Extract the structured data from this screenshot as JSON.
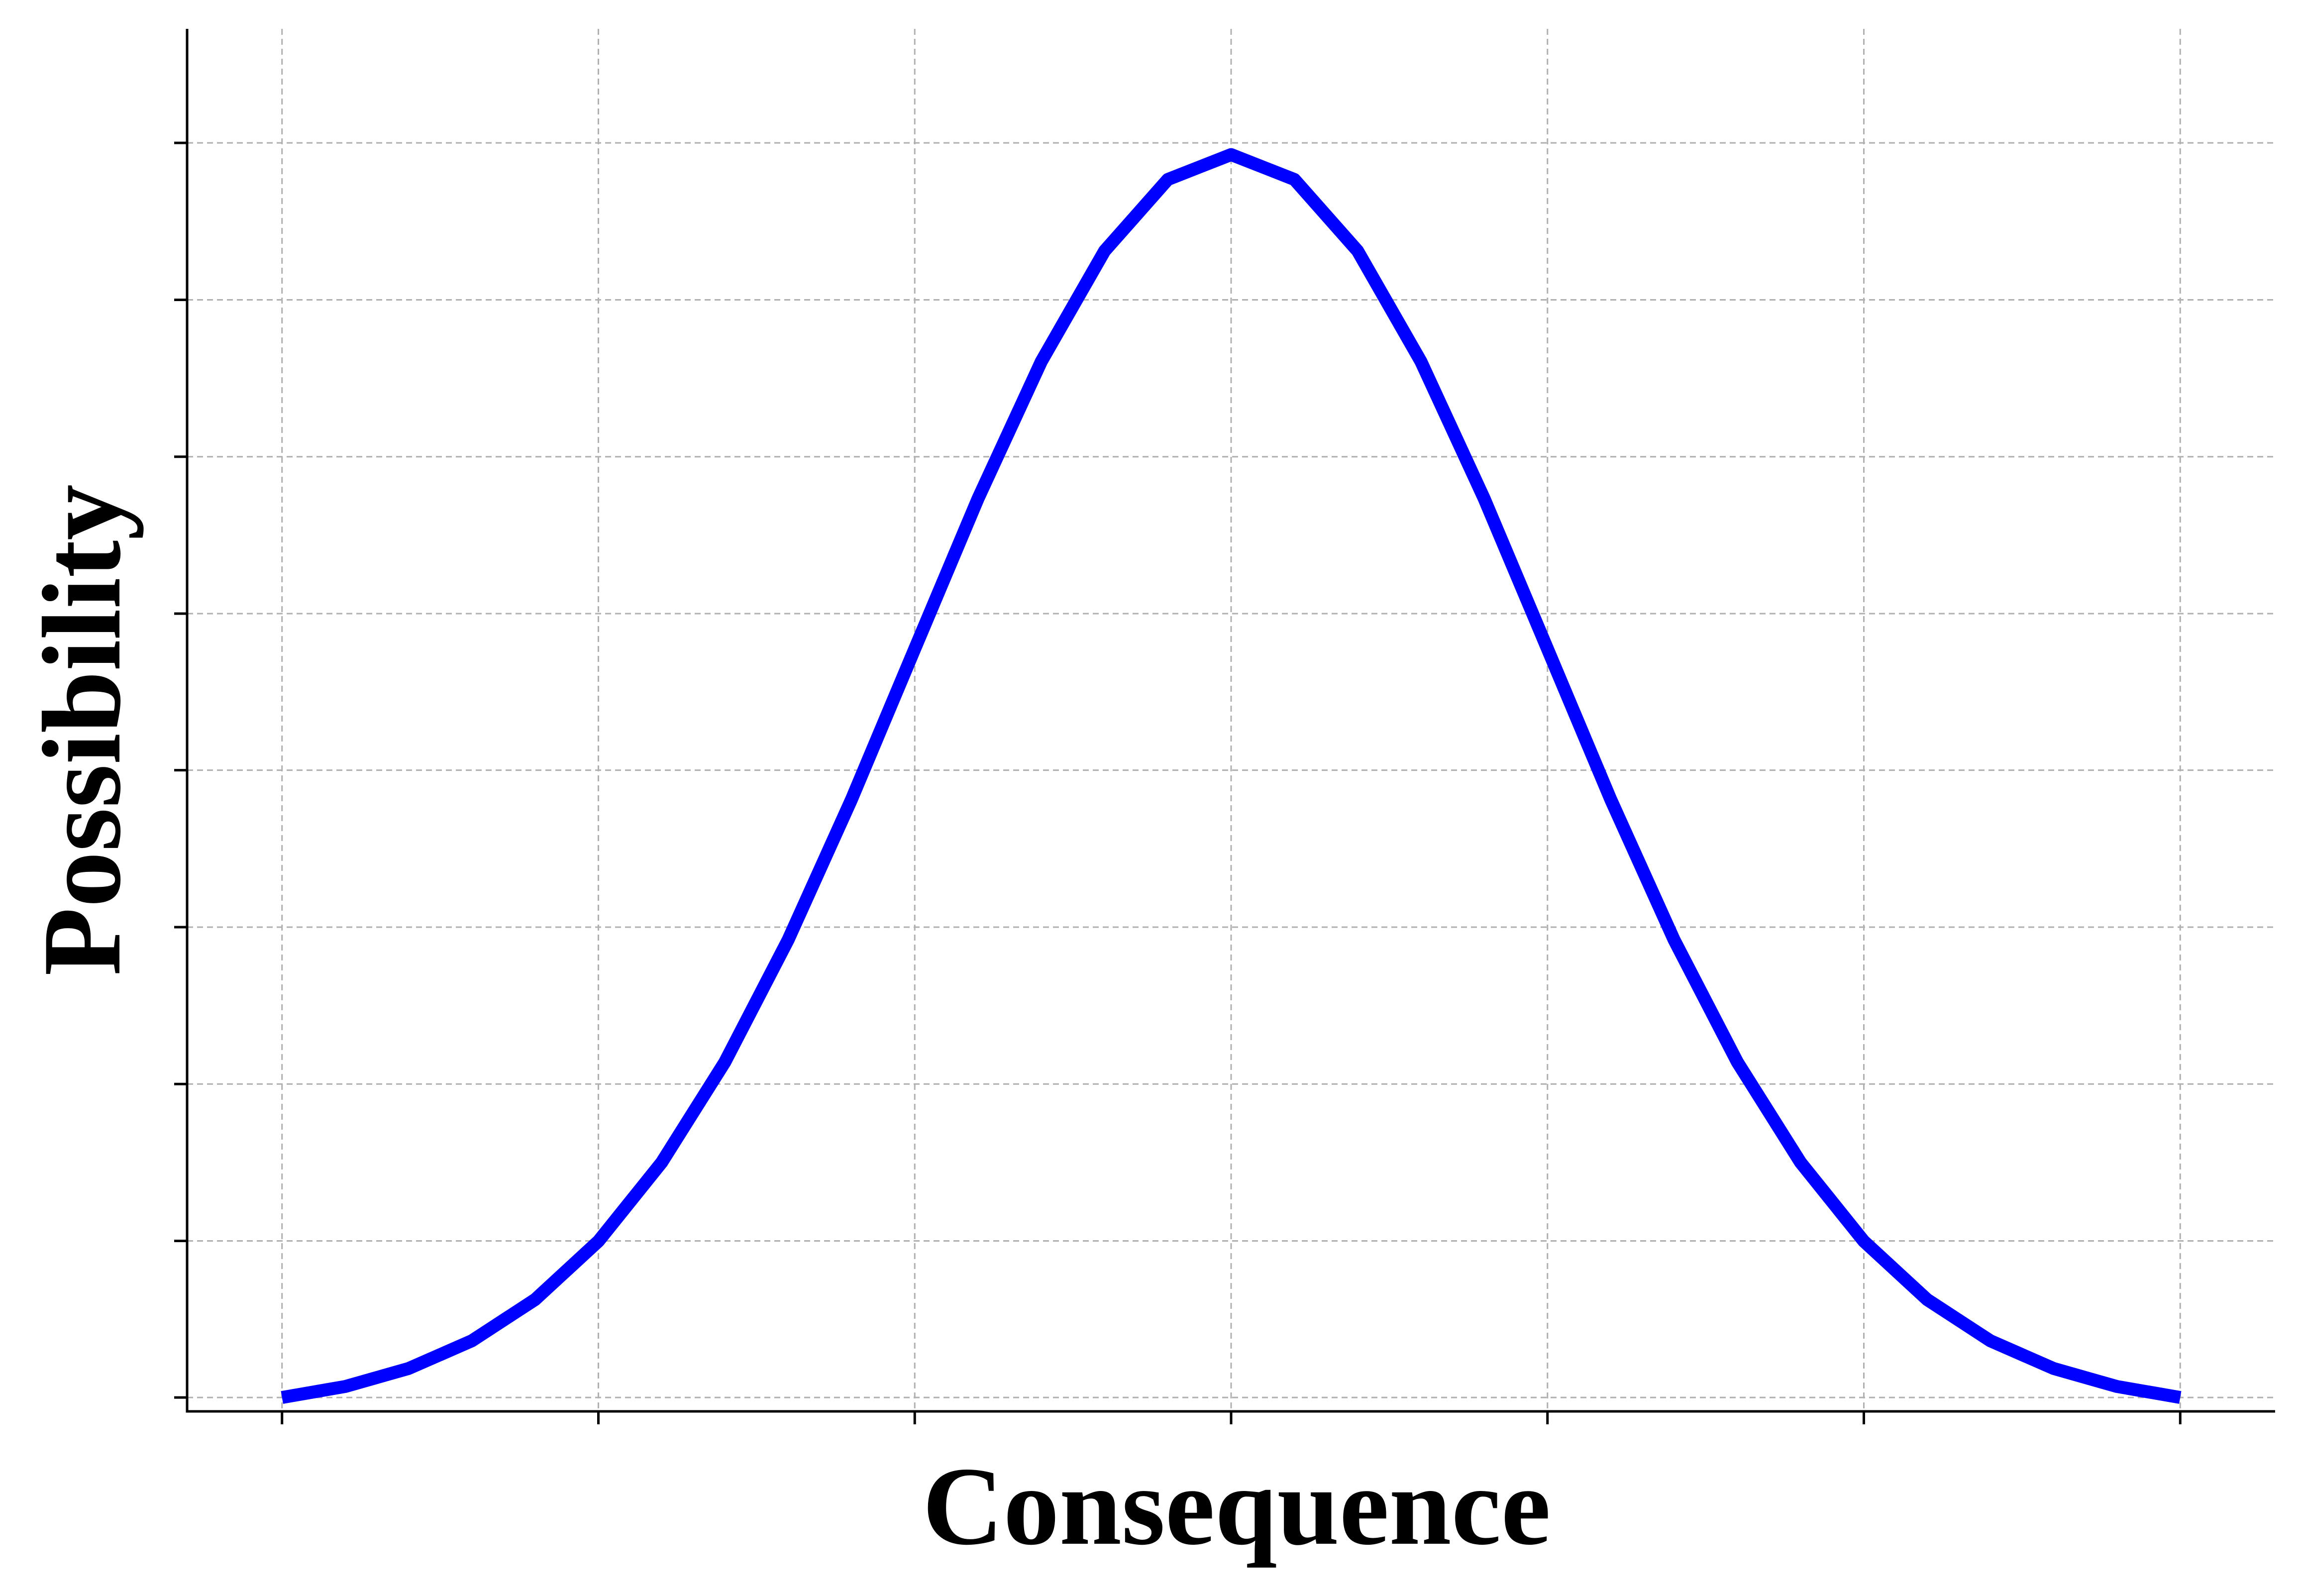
{
  "chart_data": {
    "type": "line",
    "title": "",
    "xlabel": "Consequence",
    "ylabel": "Possibility",
    "grid": true,
    "x_ticks_labeled": false,
    "y_ticks_labeled": false,
    "xlim": [
      -3.3,
      3.3
    ],
    "ylim": [
      0.0,
      0.4388
    ],
    "x_ticks": [
      -3,
      -2,
      -1,
      0,
      1,
      2,
      3
    ],
    "y_ticks": [
      0.0044,
      0.0541,
      0.1039,
      0.1537,
      0.2035,
      0.2532,
      0.303,
      0.3528,
      0.4026
    ],
    "series": [
      {
        "color": "#0000ff",
        "x": [
          -3.0,
          -2.8,
          -2.6,
          -2.4,
          -2.2,
          -2.0,
          -1.8,
          -1.6,
          -1.4,
          -1.2,
          -1.0,
          -0.8,
          -0.6,
          -0.4,
          -0.2,
          0.0,
          0.2,
          0.4,
          0.6,
          0.8,
          1.0,
          1.2,
          1.4,
          1.6,
          1.8,
          2.0,
          2.2,
          2.4,
          2.6,
          2.8,
          3.0
        ],
        "y": [
          0.0044,
          0.0079,
          0.0136,
          0.0224,
          0.0355,
          0.054,
          0.079,
          0.1109,
          0.1497,
          0.1942,
          0.242,
          0.2897,
          0.3332,
          0.3683,
          0.391,
          0.3989,
          0.391,
          0.3683,
          0.3332,
          0.2897,
          0.242,
          0.1942,
          0.1497,
          0.1109,
          0.079,
          0.054,
          0.0355,
          0.0224,
          0.0136,
          0.0079,
          0.0044
        ]
      }
    ]
  }
}
